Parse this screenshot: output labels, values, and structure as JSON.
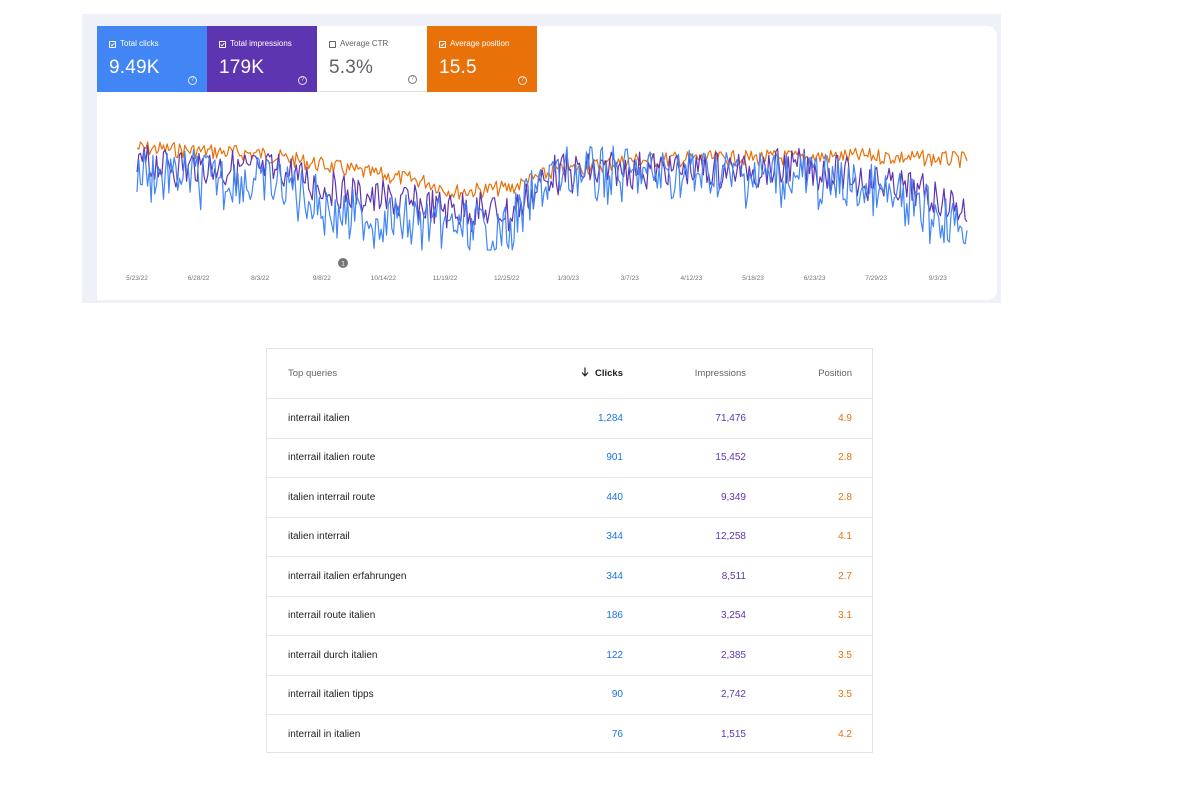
{
  "metrics": {
    "clicks": {
      "label": "Total clicks",
      "value": "9.49K",
      "checked": true,
      "color": "#4285f4"
    },
    "impressions": {
      "label": "Total impressions",
      "value": "179K",
      "checked": true,
      "color": "#5e35b1"
    },
    "ctr": {
      "label": "Average CTR",
      "value": "5.3%",
      "checked": false
    },
    "position": {
      "label": "Average position",
      "value": "15.5",
      "checked": true,
      "color": "#e8710a"
    }
  },
  "chart_data": {
    "type": "line",
    "x_tick_labels": [
      "5/23/22",
      "6/28/22",
      "8/3/22",
      "9/8/22",
      "10/14/22",
      "11/19/22",
      "12/25/22",
      "1/30/23",
      "3/7/23",
      "4/12/23",
      "5/18/23",
      "6/23/23",
      "7/29/23",
      "9/3/23"
    ],
    "annotation": "1",
    "grid": false,
    "series": [
      {
        "name": "Total clicks",
        "color": "#4285f4"
      },
      {
        "name": "Total impressions",
        "color": "#5e35b1"
      },
      {
        "name": "Average position",
        "color": "#e8710a"
      }
    ]
  },
  "table": {
    "headers": {
      "query": "Top queries",
      "clicks": "Clicks",
      "impressions": "Impressions",
      "position": "Position"
    },
    "rows": [
      {
        "query": "interrail italien",
        "clicks": "1,284",
        "impressions": "71,476",
        "position": "4.9"
      },
      {
        "query": "interrail italien route",
        "clicks": "901",
        "impressions": "15,452",
        "position": "2.8"
      },
      {
        "query": "italien interrail route",
        "clicks": "440",
        "impressions": "9,349",
        "position": "2.8"
      },
      {
        "query": "italien interrail",
        "clicks": "344",
        "impressions": "12,258",
        "position": "4.1"
      },
      {
        "query": "interrail italien erfahrungen",
        "clicks": "344",
        "impressions": "8,511",
        "position": "2.7"
      },
      {
        "query": "interrail route italien",
        "clicks": "186",
        "impressions": "3,254",
        "position": "3.1"
      },
      {
        "query": "interrail durch italien",
        "clicks": "122",
        "impressions": "2,385",
        "position": "3.5"
      },
      {
        "query": "interrail italien tipps",
        "clicks": "90",
        "impressions": "2,742",
        "position": "3.5"
      },
      {
        "query": "interrail in italien",
        "clicks": "76",
        "impressions": "1,515",
        "position": "4.2"
      }
    ]
  }
}
